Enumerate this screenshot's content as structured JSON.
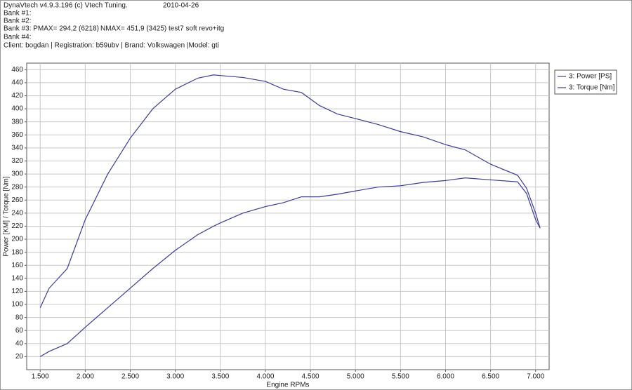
{
  "chart_data": {
    "type": "line",
    "header": [
      [
        "DynaVtech v4.9.3.196 (c) Vtech Tuning.",
        "2010-04-26"
      ],
      [
        "Bank #1:"
      ],
      [
        "Bank #2:"
      ],
      [
        "Bank #3: PMAX= 294,2 (6218)",
        "NMAX= 451,9 (3425)",
        "test7 soft revo+itg"
      ],
      [
        "Bank #4:"
      ],
      [
        "Client:  bogdan | Registration:  b59ubv | Brand: Volkswagen |Model: gti"
      ]
    ],
    "x_label": "Engine RPMs",
    "y_label": "Power [KM] / Torque [Nm]",
    "x": [
      1500,
      1600,
      1800,
      2000,
      2250,
      2500,
      2750,
      3000,
      3250,
      3425,
      3500,
      3750,
      4000,
      4200,
      4400,
      4600,
      4800,
      5000,
      5250,
      5500,
      5750,
      6000,
      6218,
      6500,
      6800,
      6900,
      7000,
      7050
    ],
    "series": [
      {
        "name": "3: Power [PS]",
        "color": "#3a3aa0",
        "values": [
          20,
          28,
          40,
          65,
          95,
          125,
          155,
          183,
          207,
          220,
          225,
          240,
          250,
          256,
          265,
          265,
          269,
          274,
          280,
          282,
          287,
          290,
          294,
          291,
          288,
          270,
          230,
          217
        ]
      },
      {
        "name": "3: Torque [Nm]",
        "color": "#3a3aa0",
        "values": [
          95,
          125,
          155,
          230,
          300,
          355,
          400,
          430,
          447,
          452,
          451,
          448,
          442,
          430,
          425,
          405,
          392,
          385,
          376,
          365,
          357,
          345,
          337,
          315,
          298,
          278,
          240,
          217
        ]
      }
    ],
    "xlim": [
      1350,
      7150
    ],
    "ylim": [
      0,
      470
    ],
    "xticks": [
      {
        "value": 1500,
        "label": "1.500"
      },
      {
        "value": 2000,
        "label": "2.000"
      },
      {
        "value": 2500,
        "label": "2.500"
      },
      {
        "value": 3000,
        "label": "3.000"
      },
      {
        "value": 3500,
        "label": "3.500"
      },
      {
        "value": 4000,
        "label": "4.000"
      },
      {
        "value": 4500,
        "label": "4.500"
      },
      {
        "value": 5000,
        "label": "5.000"
      },
      {
        "value": 5500,
        "label": "5.500"
      },
      {
        "value": 6000,
        "label": "6.000"
      },
      {
        "value": 6500,
        "label": "6.500"
      },
      {
        "value": 7000,
        "label": "7.000"
      }
    ],
    "yticks": [
      20,
      40,
      60,
      80,
      100,
      120,
      140,
      160,
      180,
      200,
      220,
      240,
      260,
      280,
      300,
      320,
      340,
      360,
      380,
      400,
      420,
      440,
      460
    ],
    "grid": true,
    "legend": "top-right"
  }
}
